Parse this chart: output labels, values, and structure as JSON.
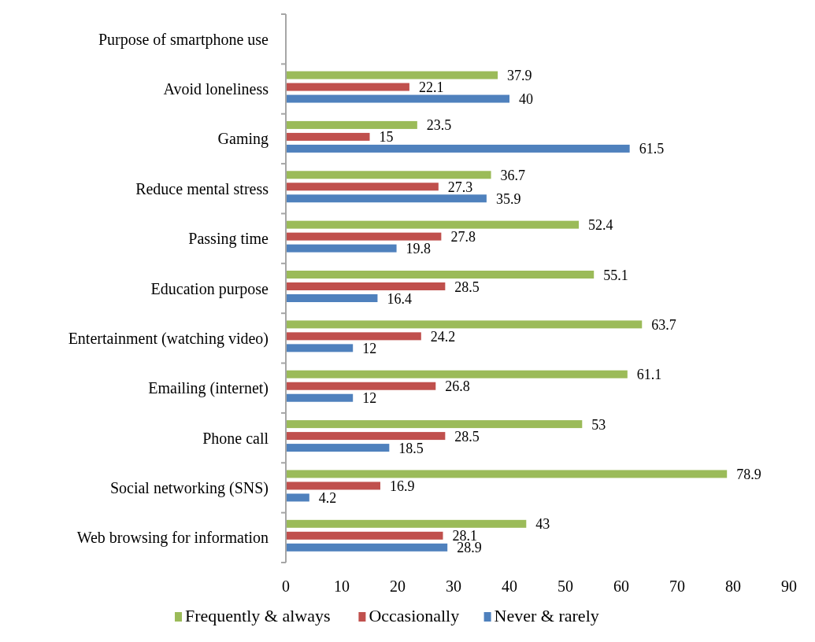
{
  "chart_data": {
    "type": "bar",
    "orientation": "horizontal",
    "ylabel": "Purpose of smartphone use",
    "categories": [
      "Avoid loneliness",
      "Gaming",
      "Reduce mental stress",
      "Passing time",
      "Education purpose",
      "Entertainment  (watching video)",
      "Emailing (internet)",
      "Phone call",
      "Social networking (SNS)",
      "Web browsing for information"
    ],
    "series": [
      {
        "name": "Frequently & always",
        "color": "#9bbb59",
        "values": [
          37.9,
          23.5,
          36.7,
          52.4,
          55.1,
          63.7,
          61.1,
          53,
          78.9,
          43
        ]
      },
      {
        "name": "Occasionally",
        "color": "#c0504d",
        "values": [
          22.1,
          15,
          27.3,
          27.8,
          28.5,
          24.2,
          26.8,
          28.5,
          16.9,
          28.1
        ]
      },
      {
        "name": "Never & rarely",
        "color": "#4f81bd",
        "values": [
          40,
          61.5,
          35.9,
          19.8,
          16.4,
          12,
          12,
          18.5,
          4.2,
          28.9
        ]
      }
    ],
    "xlim": [
      0,
      90
    ],
    "xticks": [
      0,
      10,
      20,
      30,
      40,
      50,
      60,
      70,
      80,
      90
    ],
    "data_labels": true,
    "legend": "bottom",
    "grid": false
  }
}
